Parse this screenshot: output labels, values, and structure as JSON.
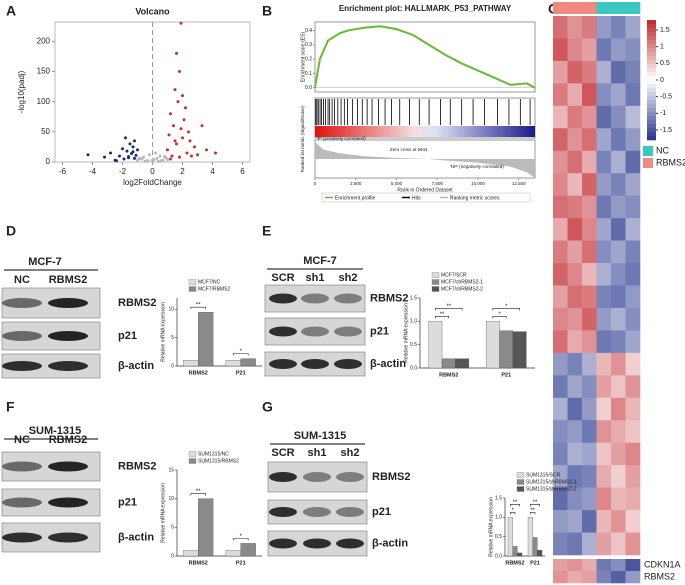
{
  "panel_labels": [
    "A",
    "B",
    "C",
    "D",
    "E",
    "F",
    "G"
  ],
  "chart_data": [
    {
      "type": "scatter",
      "title": "Volcano",
      "xlabel": "log2FoldChange",
      "ylabel": "-log10(padj)",
      "xlim": [
        -6.5,
        6.5
      ],
      "xticks": [
        -6,
        -4,
        -2,
        0,
        2,
        4,
        6
      ],
      "ylim": [
        0,
        232
      ],
      "yticks": [
        0,
        50,
        100,
        150,
        200
      ],
      "vline": 0,
      "series": [
        {
          "color": "#1f2a7a",
          "x": [
            -4.3,
            -3.2,
            -2.8,
            -2.5,
            -2.2,
            -2.0,
            -1.9,
            -1.7,
            -1.6,
            -1.5,
            -1.4,
            -1.3,
            -1.2,
            -1.1,
            -1.8,
            -2.4,
            -1.3,
            -1.6,
            -1.0,
            -1.2
          ],
          "y": [
            12,
            8,
            15,
            3,
            10,
            22,
            5,
            18,
            9,
            30,
            14,
            25,
            6,
            11,
            40,
            2,
            17,
            7,
            20,
            35
          ]
        },
        {
          "color": "#b8b8b8",
          "x": [
            -1.0,
            -0.8,
            -0.6,
            -0.4,
            -0.2,
            0.1,
            0.3,
            0.5,
            0.7,
            0.9,
            -0.5,
            0.2,
            0.6,
            -0.9,
            0.8,
            1.0,
            -0.3,
            0.4,
            -0.7,
            0.0
          ],
          "y": [
            3,
            5,
            8,
            2,
            12,
            4,
            6,
            10,
            3,
            7,
            1,
            15,
            2,
            6,
            9,
            4,
            2,
            1,
            5,
            3
          ]
        },
        {
          "color": "#d42a2a",
          "x": [
            1.0,
            1.1,
            1.2,
            1.3,
            1.4,
            1.5,
            1.6,
            1.7,
            1.8,
            1.9,
            2.0,
            2.1,
            2.2,
            2.3,
            2.5,
            2.8,
            3.0,
            3.3,
            3.6,
            4.2,
            1.9,
            1.6,
            2.0,
            2.4,
            1.2,
            1.8,
            2.6,
            1.5
          ],
          "y": [
            20,
            45,
            80,
            10,
            60,
            120,
            30,
            100,
            150,
            55,
            40,
            70,
            90,
            15,
            35,
            25,
            12,
            60,
            20,
            15,
            230,
            180,
            110,
            50,
            5,
            8,
            10,
            35
          ]
        }
      ]
    },
    {
      "type": "gsea",
      "title": "Enrichment plot: HALLMARK_P53_PATHWAY",
      "ylabel": "Enrichment score (ES)",
      "metric_label": "Ranked list metric (Signal2Noise)",
      "xlabel": "Rank in Ordered Dataset",
      "xlim": [
        0,
        13500
      ],
      "xticks": [
        0,
        {
          "value": 2500,
          "label": "2,500"
        },
        {
          "value": 5000,
          "label": "5,000"
        },
        {
          "value": 7500,
          "label": "7,500"
        },
        {
          "value": 10000,
          "label": "10,000"
        },
        {
          "value": 12500,
          "label": "12,500"
        }
      ],
      "ylim": [
        -0.03,
        0.46
      ],
      "yticks": [
        {
          "value": 0,
          "label": "0.0"
        },
        {
          "value": 0.1,
          "label": "0.1"
        },
        {
          "value": 0.2,
          "label": "0.2"
        },
        {
          "value": 0.3,
          "label": "0.3"
        },
        {
          "value": 0.4,
          "label": "0.4"
        }
      ],
      "color": "#66bb33",
      "x": [
        0,
        300,
        800,
        1500,
        2000,
        3000,
        4000,
        5000,
        6000,
        7000,
        8000,
        9000,
        10000,
        11000,
        12000,
        13000,
        13500
      ],
      "y": [
        0,
        0.2,
        0.33,
        0.38,
        0.4,
        0.42,
        0.43,
        0.41,
        0.37,
        0.3,
        0.23,
        0.17,
        0.12,
        0.07,
        0.02,
        0.03,
        0.0
      ],
      "hits": [
        50,
        120,
        200,
        310,
        400,
        520,
        650,
        800,
        900,
        1050,
        1200,
        1400,
        1600,
        1800,
        2000,
        2300,
        2600,
        2900,
        3200,
        3500,
        3900,
        4300,
        4700,
        5200,
        5800,
        6400,
        7000,
        7700,
        8300,
        9000,
        9700,
        10400,
        11200,
        11900,
        12600,
        13200
      ],
      "metric": {
        "x": [
          0,
          500,
          1500,
          3000,
          5000,
          6944,
          8000,
          10000,
          12000,
          13000,
          13500
        ],
        "y": [
          0.9,
          0.5,
          0.3,
          0.15,
          0.05,
          0,
          -0.08,
          -0.2,
          -0.4,
          -0.7,
          -1.0
        ],
        "ylim": [
          -1,
          1
        ]
      },
      "annotations": [
        "'P' (positively correlated)",
        "Zero cross at 6944",
        "'NP' (negatively correlated)"
      ],
      "legend": [
        "Enrichment profile",
        "Hits",
        "Ranking metric scores"
      ]
    },
    {
      "type": "heatmap",
      "zlim": [
        -1.8,
        1.8
      ],
      "zticks": [
        1.5,
        1,
        0.5,
        0,
        -0.5,
        -1,
        -1.5
      ],
      "colors": {
        "low": "#26348b",
        "mid": "#ffffff",
        "high": "#c1272d"
      },
      "groups": [
        {
          "name": "NC",
          "color": "#3cc6c4"
        },
        {
          "name": "RBMS2",
          "color": "#f08a80"
        }
      ],
      "columns": [
        1,
        1,
        1,
        0,
        0,
        0
      ],
      "values": [
        [
          1.2,
          0.9,
          1.1,
          -0.9,
          -1.1,
          -0.8
        ],
        [
          1.4,
          1.0,
          0.8,
          -1.2,
          -0.9,
          -1.0
        ],
        [
          0.8,
          1.3,
          1.1,
          -0.7,
          -1.3,
          -1.1
        ],
        [
          1.1,
          0.7,
          1.4,
          -1.0,
          -0.8,
          -1.2
        ],
        [
          0.6,
          1.1,
          0.9,
          -1.3,
          -1.0,
          -0.6
        ],
        [
          1.3,
          0.9,
          1.2,
          -0.8,
          -1.2,
          -0.9
        ],
        [
          0.9,
          1.2,
          0.7,
          -1.1,
          -0.7,
          -1.3
        ],
        [
          1.0,
          0.6,
          1.3,
          -0.9,
          -1.1,
          -0.8
        ],
        [
          1.2,
          1.1,
          0.9,
          -1.2,
          -0.9,
          -1.0
        ],
        [
          0.7,
          1.4,
          1.0,
          -0.8,
          -1.3,
          -0.7
        ],
        [
          1.1,
          0.8,
          1.2,
          -1.0,
          -0.8,
          -1.1
        ],
        [
          1.3,
          1.0,
          0.6,
          -0.7,
          -1.0,
          -1.2
        ],
        [
          0.8,
          1.2,
          1.1,
          -1.1,
          -1.2,
          -0.9
        ],
        [
          1.0,
          0.9,
          1.3,
          -0.9,
          -0.7,
          -1.0
        ],
        [
          1.2,
          0.7,
          0.9,
          -1.2,
          -1.1,
          -0.8
        ],
        [
          -0.9,
          -1.1,
          -0.7,
          0.6,
          0.9,
          0.4
        ],
        [
          -1.2,
          -0.8,
          -1.0,
          0.8,
          0.5,
          0.9
        ],
        [
          -0.7,
          -1.3,
          -0.9,
          0.4,
          1.0,
          0.6
        ],
        [
          -1.0,
          -0.9,
          -1.2,
          0.9,
          0.7,
          0.5
        ],
        [
          -1.1,
          -0.7,
          -0.8,
          0.5,
          0.8,
          1.0
        ],
        [
          -0.8,
          -1.2,
          -1.1,
          0.7,
          0.4,
          0.8
        ],
        [
          -1.3,
          -1.0,
          -0.9,
          1.0,
          0.6,
          0.7
        ],
        [
          -0.9,
          -0.8,
          -1.3,
          0.6,
          0.9,
          0.4
        ],
        [
          -1.1,
          -1.2,
          -0.7,
          0.8,
          0.5,
          0.9
        ]
      ],
      "genes": [
        "CDKN1A",
        "RBMS2"
      ],
      "gene_values": [
        [
          0.8,
          0.9,
          0.7,
          -1.2,
          -1.0,
          -1.5
        ],
        [
          0.9,
          0.7,
          0.8,
          -1.1,
          -1.4,
          -0.9
        ]
      ]
    },
    {
      "type": "bar",
      "ylabel": "Relative mRNA expression",
      "categories": [
        "RBMS2",
        "P21"
      ],
      "ylim": [
        0,
        12
      ],
      "yticks": [
        0,
        5,
        10
      ],
      "series": [
        {
          "name": "MCF7/NC",
          "color": "#dcdcdc",
          "values": [
            1,
            1
          ]
        },
        {
          "name": "MCF7/RBMS2",
          "color": "#8a8a8a",
          "values": [
            9.5,
            1.3
          ]
        }
      ],
      "annotations": [
        "**",
        "*"
      ]
    },
    {
      "type": "bar",
      "ylabel": "Relative mRNA expression",
      "categories": [
        "RBMS2",
        "P21"
      ],
      "ylim": [
        0,
        1.5
      ],
      "yticks": [
        {
          "value": 0,
          "label": "0.0"
        },
        {
          "value": 0.5,
          "label": "0.5"
        },
        {
          "value": 1,
          "label": "1.0"
        },
        {
          "value": 1.5,
          "label": "1.5"
        }
      ],
      "series": [
        {
          "name": "MCF7/SCR",
          "color": "#dcdcdc",
          "values": [
            1.0,
            1.0
          ]
        },
        {
          "name": "MCF7/shRBMS2-1",
          "color": "#8a8a8a",
          "values": [
            0.2,
            0.8
          ]
        },
        {
          "name": "MCF7/shRBMS2-2",
          "color": "#555555",
          "values": [
            0.2,
            0.78
          ]
        }
      ],
      "annotations": [
        "**",
        "**",
        "*",
        "*"
      ]
    },
    {
      "type": "bar",
      "ylabel": "Relative mRNA expression",
      "categories": [
        "RBMS2",
        "P21"
      ],
      "ylim": [
        0,
        15
      ],
      "yticks": [
        0,
        5,
        10,
        15
      ],
      "series": [
        {
          "name": "SUM1315/NC",
          "color": "#dcdcdc",
          "values": [
            1,
            1
          ]
        },
        {
          "name": "SUM1315/RBMS2",
          "color": "#8a8a8a",
          "values": [
            10,
            2.2
          ]
        }
      ],
      "annotations": [
        "**",
        "*"
      ]
    },
    {
      "type": "bar",
      "ylabel": "Relative mRNA expression",
      "categories": [
        "RBMS2",
        "P21"
      ],
      "ylim": [
        0,
        1.5
      ],
      "yticks": [
        {
          "value": 0,
          "label": "0.0"
        },
        {
          "value": 0.5,
          "label": "0.5"
        },
        {
          "value": 1,
          "label": "1.0"
        },
        {
          "value": 1.5,
          "label": "1.5"
        }
      ],
      "series": [
        {
          "name": "SUM1315/SCR",
          "color": "#dcdcdc",
          "values": [
            1.0,
            1.0
          ]
        },
        {
          "name": "SUM1315/shRBMS2-1",
          "color": "#8a8a8a",
          "values": [
            0.25,
            0.48
          ]
        },
        {
          "name": "SUM1315/shRBMS2-2",
          "color": "#555555",
          "values": [
            0.08,
            0.15
          ]
        }
      ],
      "annotations": [
        "*",
        "**",
        "**",
        "**"
      ]
    }
  ],
  "blots": [
    {
      "cell": "MCF-7",
      "lanes": [
        "NC",
        "RBMS2"
      ],
      "proteins": [
        "RBMS2",
        "p21",
        "β-actin"
      ]
    },
    {
      "cell": "MCF-7",
      "lanes": [
        "SCR",
        "sh1",
        "sh2"
      ],
      "proteins": [
        "RBMS2",
        "p21",
        "β-actin"
      ]
    },
    {
      "cell": "SUM-1315",
      "lanes": [
        "NC",
        "RBMS2"
      ],
      "proteins": [
        "RBMS2",
        "p21",
        "β-actin"
      ]
    },
    {
      "cell": "SUM-1315",
      "lanes": [
        "SCR",
        "sh1",
        "sh2"
      ],
      "proteins": [
        "RBMS2",
        "p21",
        "β-actin"
      ]
    }
  ]
}
